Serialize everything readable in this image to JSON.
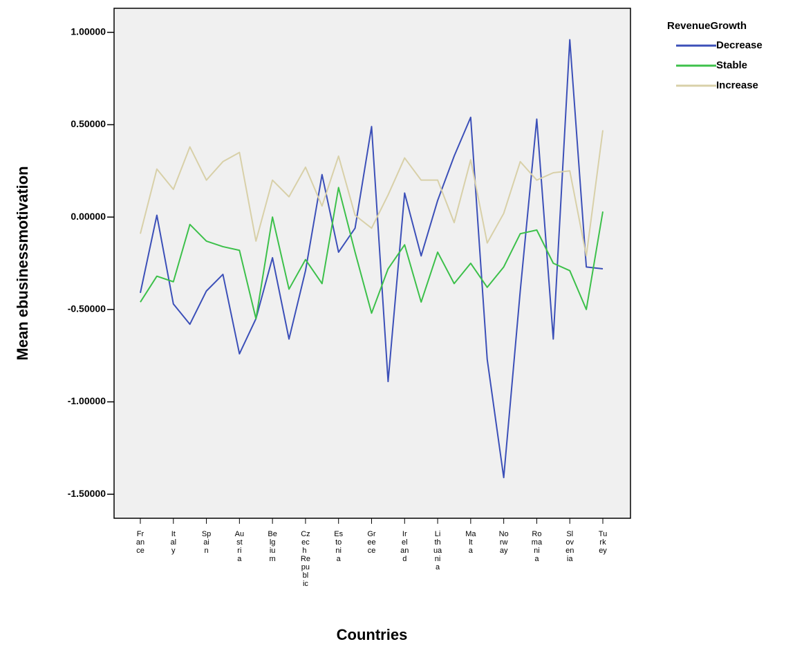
{
  "chart_data": {
    "type": "line",
    "x_label": "Countries",
    "y_label": "Mean ebusinessmotivation",
    "legend_title": "RevenueGrowth",
    "legend_position": "outside-right",
    "background": "#f0f0f0",
    "categories": [
      "France",
      null,
      "Italy",
      null,
      "Spain",
      null,
      "Austria",
      null,
      "Belgium",
      null,
      "Czech Republic",
      null,
      "Estonia",
      null,
      "Greece",
      null,
      "Ireland",
      null,
      "Lithuania",
      null,
      "Malta",
      null,
      "Norway",
      null,
      "Romania",
      null,
      "Slovenia",
      null,
      "Turkey"
    ],
    "ylim": [
      -1.63,
      1.13
    ],
    "yticks": [
      {
        "value": 1,
        "label": "1.00000"
      },
      {
        "value": 0.5,
        "label": "0.50000"
      },
      {
        "value": 0,
        "label": "0.00000"
      },
      {
        "value": -0.5,
        "label": "-0.50000"
      },
      {
        "value": -1,
        "label": "-1.00000"
      },
      {
        "value": -1.5,
        "label": "-1.50000"
      }
    ],
    "series": [
      {
        "name": "Decrease",
        "color": "#3b4fb8",
        "values": [
          -0.41,
          0.01,
          -0.47,
          -0.58,
          -0.4,
          -0.31,
          -0.74,
          -0.55,
          -0.22,
          -0.66,
          -0.29,
          0.23,
          -0.19,
          -0.06,
          0.49,
          -0.89,
          0.13,
          -0.21,
          0.09,
          0.33,
          0.54,
          -0.77,
          -1.41,
          -0.4,
          0.53,
          -0.66,
          0.96,
          -0.27,
          -0.28
        ]
      },
      {
        "name": "Stable",
        "color": "#3cc04a",
        "values": [
          -0.46,
          -0.32,
          -0.35,
          -0.04,
          -0.13,
          -0.16,
          -0.18,
          -0.55,
          0.0,
          -0.39,
          -0.23,
          -0.36,
          0.16,
          -0.19,
          -0.52,
          -0.28,
          -0.15,
          -0.46,
          -0.19,
          -0.36,
          -0.25,
          -0.38,
          -0.27,
          -0.09,
          -0.07,
          -0.25,
          -0.29,
          -0.5,
          0.03
        ]
      },
      {
        "name": "Increase",
        "color": "#d8d0a8",
        "values": [
          -0.09,
          0.26,
          0.15,
          0.38,
          0.2,
          0.3,
          0.35,
          -0.13,
          0.2,
          0.11,
          0.27,
          0.06,
          0.33,
          0.01,
          -0.06,
          0.12,
          0.32,
          0.2,
          0.2,
          -0.03,
          0.31,
          -0.14,
          0.02,
          0.3,
          0.2,
          0.24,
          0.25,
          -0.21,
          0.47
        ]
      }
    ]
  }
}
